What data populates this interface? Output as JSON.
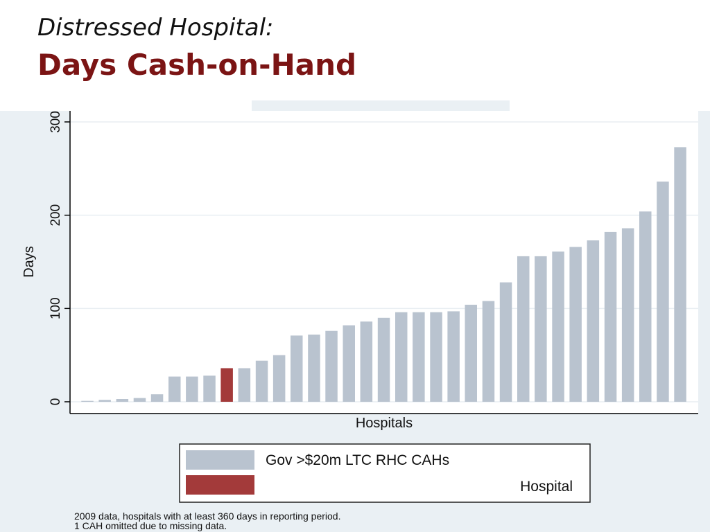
{
  "slide": {
    "subtitle": "Distressed Hospital:",
    "title": "Days Cash-on-Hand"
  },
  "chart_data": {
    "type": "bar",
    "title": "",
    "xlabel": "Hospitals",
    "ylabel": "Days",
    "ylim": [
      0,
      300
    ],
    "yticks": [
      0,
      100,
      200,
      300
    ],
    "grid": true,
    "legend_placement": "bottom",
    "series": [
      {
        "name": "Gov >$20m LTC RHC CAHs",
        "color": "#b9c3cf",
        "values": [
          1,
          2,
          3,
          4,
          8,
          27,
          27,
          28,
          null,
          36,
          44,
          50,
          71,
          72,
          76,
          82,
          86,
          90,
          96,
          96,
          96,
          97,
          104,
          108,
          128,
          156,
          156,
          161,
          166,
          173,
          182,
          186,
          204,
          236,
          273
        ]
      },
      {
        "name": "Hospital",
        "color": "#a33a3a",
        "values": [
          null,
          null,
          null,
          null,
          null,
          null,
          null,
          null,
          36,
          null,
          null,
          null,
          null,
          null,
          null,
          null,
          null,
          null,
          null,
          null,
          null,
          null,
          null,
          null,
          null,
          null,
          null,
          null,
          null,
          null,
          null,
          null,
          null,
          null,
          null
        ]
      }
    ]
  },
  "footnotes": [
    "2009 data, hospitals with at least 360 days in reporting period.",
    "1 CAH omitted due to missing data."
  ]
}
